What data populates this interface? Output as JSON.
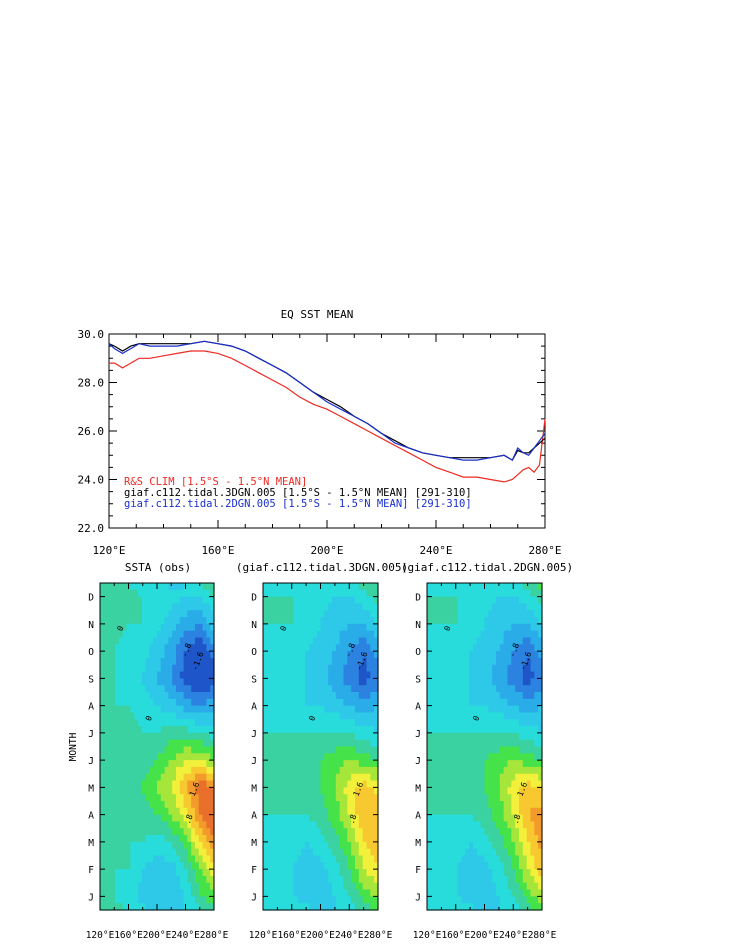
{
  "chart_data": [
    {
      "type": "line",
      "title": "EQ SST MEAN",
      "xlim": [
        120,
        280
      ],
      "ylim": [
        22.0,
        30.0
      ],
      "x_ticks": [
        120,
        160,
        200,
        240,
        280
      ],
      "x_tick_labels": [
        "120°E",
        "160°E",
        "200°E",
        "240°E",
        "280°E"
      ],
      "y_ticks": [
        22.0,
        24.0,
        26.0,
        28.0,
        30.0
      ],
      "y_tick_labels": [
        "22.0",
        "24.0",
        "26.0",
        "28.0",
        "30.0"
      ],
      "legend_position": "bottom-left",
      "x": [
        120,
        122,
        125,
        128,
        131,
        135,
        140,
        145,
        150,
        155,
        160,
        165,
        170,
        175,
        180,
        185,
        190,
        195,
        200,
        205,
        210,
        215,
        220,
        225,
        230,
        235,
        240,
        245,
        250,
        255,
        260,
        265,
        268,
        270,
        272,
        274,
        276,
        278,
        280
      ],
      "series": [
        {
          "name": "R&S CLIM [1.5°S - 1.5°N MEAN]",
          "color": "#ee2a24",
          "values": [
            28.8,
            28.8,
            28.6,
            28.8,
            29.0,
            29.0,
            29.1,
            29.2,
            29.3,
            29.3,
            29.2,
            29.0,
            28.7,
            28.4,
            28.1,
            27.8,
            27.4,
            27.1,
            26.9,
            26.6,
            26.3,
            26.0,
            25.7,
            25.4,
            25.1,
            24.8,
            24.5,
            24.3,
            24.1,
            24.1,
            24.0,
            23.9,
            24.0,
            24.2,
            24.4,
            24.5,
            24.3,
            24.6,
            26.5
          ]
        },
        {
          "name": "giaf.c112.tidal.3DGN.005 [1.5°S - 1.5°N MEAN] [291-310]",
          "color": "#000000",
          "values": [
            29.6,
            29.5,
            29.3,
            29.5,
            29.6,
            29.6,
            29.6,
            29.6,
            29.6,
            29.7,
            29.6,
            29.5,
            29.3,
            29.0,
            28.7,
            28.4,
            28.0,
            27.6,
            27.3,
            27.0,
            26.6,
            26.3,
            25.9,
            25.6,
            25.3,
            25.1,
            25.0,
            24.9,
            24.9,
            24.9,
            24.9,
            25.0,
            24.8,
            25.2,
            25.1,
            25.1,
            25.3,
            25.5,
            25.7
          ]
        },
        {
          "name": "giaf.c112.tidal.2DGN.005 [1.5°S - 1.5°N MEAN] [291-310]",
          "color": "#1a2fcc",
          "values": [
            29.6,
            29.4,
            29.2,
            29.4,
            29.6,
            29.5,
            29.5,
            29.5,
            29.6,
            29.7,
            29.6,
            29.5,
            29.3,
            29.0,
            28.7,
            28.4,
            28.0,
            27.6,
            27.2,
            26.9,
            26.6,
            26.3,
            25.9,
            25.5,
            25.3,
            25.1,
            25.0,
            24.9,
            24.8,
            24.8,
            24.9,
            25.0,
            24.8,
            25.3,
            25.1,
            25.0,
            25.3,
            25.6,
            25.9
          ]
        }
      ]
    },
    {
      "type": "heatmap",
      "title": "SSTA (obs)",
      "ylabel": "MONTH",
      "xlim": [
        120,
        280
      ],
      "x_ticks": [
        120,
        160,
        200,
        240,
        280
      ],
      "x_tick_labels": [
        "120°E",
        "160°E",
        "200°E",
        "240°E",
        "280°E"
      ],
      "months": [
        "J",
        "F",
        "M",
        "A",
        "M",
        "J",
        "J",
        "A",
        "S",
        "O",
        "N",
        "D"
      ],
      "longitudes": [
        120,
        140,
        160,
        180,
        200,
        220,
        240,
        260,
        280
      ],
      "contour_labels": [
        "0",
        "-.8",
        "-1.6",
        ".8",
        "1.6"
      ],
      "values": [
        [
          0.0,
          0.0,
          -0.2,
          -0.6,
          -0.8,
          -0.8,
          -0.4,
          0.4,
          0.6
        ],
        [
          0.0,
          0.0,
          0.0,
          -0.4,
          -0.6,
          -0.6,
          0.0,
          0.8,
          1.4
        ],
        [
          0.0,
          0.0,
          0.0,
          0.0,
          -0.2,
          0.0,
          0.6,
          1.6,
          2.4
        ],
        [
          0.2,
          0.2,
          0.0,
          0.2,
          0.4,
          0.8,
          1.4,
          2.4,
          2.8
        ],
        [
          0.2,
          0.2,
          0.2,
          0.4,
          0.8,
          1.2,
          2.0,
          2.6,
          2.6
        ],
        [
          0.2,
          0.2,
          0.2,
          0.2,
          0.4,
          0.8,
          1.2,
          1.2,
          0.8
        ],
        [
          0.2,
          0.2,
          0.2,
          0.0,
          0.0,
          0.2,
          0.2,
          0.0,
          -0.2
        ],
        [
          0.0,
          0.0,
          0.0,
          -0.2,
          -0.4,
          -0.6,
          -1.0,
          -1.2,
          -1.0
        ],
        [
          0.0,
          0.0,
          -0.2,
          -0.4,
          -0.8,
          -1.2,
          -1.8,
          -2.2,
          -1.8
        ],
        [
          0.0,
          0.0,
          -0.2,
          -0.2,
          -0.6,
          -1.0,
          -1.6,
          -2.0,
          -1.4
        ],
        [
          0.0,
          0.2,
          0.0,
          0.0,
          -0.2,
          -0.6,
          -1.0,
          -1.2,
          -0.6
        ],
        [
          0.2,
          0.2,
          0.2,
          0.0,
          0.0,
          -0.2,
          -0.4,
          -0.4,
          0.0
        ]
      ]
    },
    {
      "type": "heatmap",
      "title": "(giaf.c112.tidal.3DGN.005)",
      "xlim": [
        120,
        280
      ],
      "x_ticks": [
        120,
        160,
        200,
        240,
        280
      ],
      "x_tick_labels": [
        "120°E",
        "160°E",
        "200°E",
        "240°E",
        "280°E"
      ],
      "months": [
        "J",
        "F",
        "M",
        "A",
        "M",
        "J",
        "J",
        "A",
        "S",
        "O",
        "N",
        "D"
      ],
      "longitudes": [
        120,
        140,
        160,
        180,
        200,
        220,
        240,
        260,
        280
      ],
      "contour_labels": [
        "0",
        "-.8",
        "-1.6",
        ".8",
        "1.6"
      ],
      "values": [
        [
          0.0,
          -0.2,
          -0.4,
          -0.6,
          -0.6,
          -0.4,
          0.0,
          0.6,
          0.8
        ],
        [
          0.0,
          -0.2,
          -0.4,
          -0.6,
          -0.6,
          -0.2,
          0.4,
          1.2,
          1.6
        ],
        [
          0.0,
          -0.2,
          -0.2,
          -0.4,
          -0.2,
          0.2,
          0.8,
          1.6,
          2.0
        ],
        [
          0.0,
          0.0,
          0.0,
          0.0,
          0.2,
          0.6,
          1.2,
          2.0,
          2.0
        ],
        [
          0.2,
          0.2,
          0.2,
          0.2,
          0.4,
          0.8,
          1.4,
          1.8,
          1.4
        ],
        [
          0.2,
          0.2,
          0.2,
          0.2,
          0.4,
          0.6,
          0.8,
          0.6,
          0.4
        ],
        [
          0.0,
          0.0,
          0.0,
          0.0,
          0.0,
          0.0,
          0.0,
          -0.2,
          -0.4
        ],
        [
          -0.2,
          -0.2,
          -0.2,
          -0.4,
          -0.4,
          -0.6,
          -0.8,
          -1.0,
          -0.8
        ],
        [
          -0.2,
          -0.2,
          -0.4,
          -0.4,
          -0.6,
          -1.0,
          -1.4,
          -1.8,
          -1.4
        ],
        [
          -0.2,
          -0.2,
          -0.2,
          -0.4,
          -0.6,
          -0.8,
          -1.2,
          -1.6,
          -1.0
        ],
        [
          0.0,
          0.0,
          0.0,
          -0.2,
          -0.4,
          -0.6,
          -0.8,
          -0.8,
          -0.4
        ],
        [
          0.0,
          0.0,
          0.0,
          0.0,
          -0.2,
          -0.4,
          -0.4,
          -0.2,
          0.2
        ]
      ]
    },
    {
      "type": "heatmap",
      "title": "(giaf.c112.tidal.2DGN.005)",
      "xlim": [
        120,
        280
      ],
      "x_ticks": [
        120,
        160,
        200,
        240,
        280
      ],
      "x_tick_labels": [
        "120°E",
        "160°E",
        "200°E",
        "240°E",
        "280°E"
      ],
      "months": [
        "J",
        "F",
        "M",
        "A",
        "M",
        "J",
        "J",
        "A",
        "S",
        "O",
        "N",
        "D"
      ],
      "longitudes": [
        120,
        140,
        160,
        180,
        200,
        220,
        240,
        260,
        280
      ],
      "contour_labels": [
        "0",
        "-.8",
        "-1.6",
        ".8",
        "1.6"
      ],
      "values": [
        [
          0.0,
          -0.2,
          -0.4,
          -0.6,
          -0.6,
          -0.4,
          0.0,
          0.6,
          1.0
        ],
        [
          0.0,
          -0.2,
          -0.4,
          -0.6,
          -0.6,
          -0.2,
          0.4,
          1.2,
          1.8
        ],
        [
          0.0,
          -0.2,
          -0.2,
          -0.4,
          -0.2,
          0.2,
          0.8,
          1.6,
          2.2
        ],
        [
          0.0,
          0.0,
          0.0,
          0.0,
          0.2,
          0.6,
          1.2,
          2.0,
          2.2
        ],
        [
          0.2,
          0.2,
          0.2,
          0.2,
          0.4,
          0.8,
          1.4,
          1.8,
          1.6
        ],
        [
          0.2,
          0.2,
          0.2,
          0.2,
          0.4,
          0.6,
          0.8,
          0.6,
          0.4
        ],
        [
          0.0,
          0.0,
          0.0,
          0.0,
          0.0,
          0.0,
          0.0,
          -0.2,
          -0.4
        ],
        [
          -0.2,
          -0.2,
          -0.2,
          -0.4,
          -0.4,
          -0.6,
          -0.8,
          -1.0,
          -0.8
        ],
        [
          -0.2,
          -0.2,
          -0.4,
          -0.4,
          -0.6,
          -1.0,
          -1.4,
          -1.8,
          -1.4
        ],
        [
          -0.2,
          -0.2,
          -0.2,
          -0.4,
          -0.6,
          -0.8,
          -1.2,
          -1.6,
          -1.0
        ],
        [
          0.0,
          0.0,
          0.0,
          -0.2,
          -0.4,
          -0.6,
          -0.8,
          -0.8,
          -0.4
        ],
        [
          0.0,
          0.0,
          0.0,
          0.0,
          -0.2,
          -0.4,
          -0.4,
          -0.2,
          0.2
        ]
      ]
    }
  ]
}
